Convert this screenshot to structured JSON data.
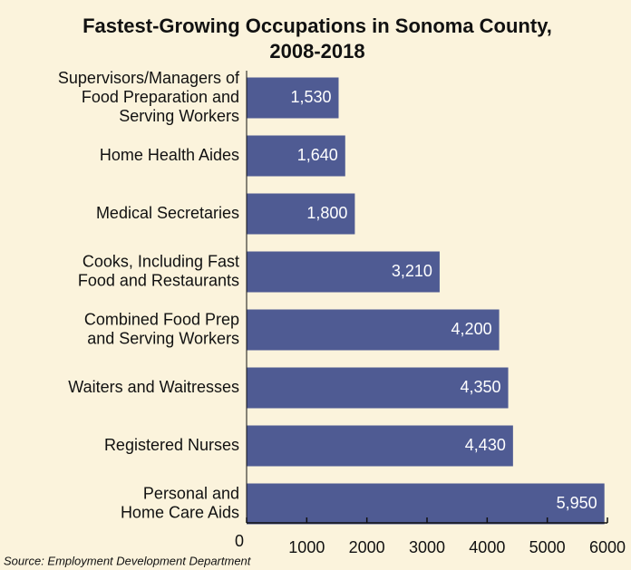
{
  "chart_data": {
    "type": "bar",
    "orientation": "horizontal",
    "title": [
      "Fastest-Growing Occupations in Sonoma County,",
      "2008-2018"
    ],
    "categories": [
      [
        "Supervisors/Managers of",
        "Food Preparation and",
        "Serving Workers"
      ],
      [
        "Home Health Aides"
      ],
      [
        "Medical Secretaries"
      ],
      [
        "Cooks, Including Fast",
        "Food and Restaurants"
      ],
      [
        "Combined Food Prep",
        "and Serving Workers"
      ],
      [
        "Waiters and Waitresses"
      ],
      [
        "Registered Nurses"
      ],
      [
        "Personal and",
        "Home Care Aids"
      ]
    ],
    "values": [
      1530,
      1640,
      1800,
      3210,
      4200,
      4350,
      4430,
      5950
    ],
    "value_labels": [
      "1,530",
      "1,640",
      "1,800",
      "3,210",
      "4,200",
      "4,350",
      "4,430",
      "5,950"
    ],
    "color": "#4f5b93",
    "xlim": [
      0,
      6000
    ],
    "xticks": [
      0,
      1000,
      2000,
      3000,
      4000,
      5000,
      6000
    ],
    "source": "Source: Employment Development Department"
  }
}
